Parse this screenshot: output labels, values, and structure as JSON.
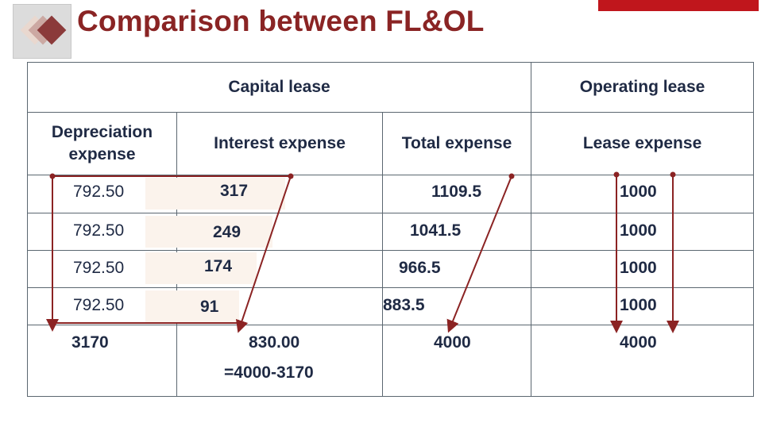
{
  "slide": {
    "title": "Comparison between FL&OL"
  },
  "table": {
    "group_headers": {
      "capital": "Capital lease",
      "operating": "Operating lease"
    },
    "column_headers": {
      "depreciation": "Depreciation expense",
      "interest": "Interest expense",
      "total": "Total expense",
      "lease": "Lease expense"
    },
    "rows": [
      {
        "depreciation": "792.50",
        "interest": "317",
        "total": "1109.5",
        "lease": "1000"
      },
      {
        "depreciation": "792.50",
        "interest": "249",
        "total": "1041.5",
        "lease": "1000"
      },
      {
        "depreciation": "792.50",
        "interest": "174",
        "total": "966.5",
        "lease": "1000"
      },
      {
        "depreciation": "792.50",
        "interest": "91",
        "total": "883.5",
        "lease": "1000"
      }
    ],
    "totals": {
      "depreciation": "3170",
      "interest": "830.00",
      "interest_note": "=4000-3170",
      "total": "4000",
      "lease": "4000"
    }
  },
  "colors": {
    "title": "#8a2424",
    "arrows": "#8b2323",
    "brand_bar": "#c0161c",
    "grid": "#5b6770",
    "text": "#1f2a44"
  }
}
